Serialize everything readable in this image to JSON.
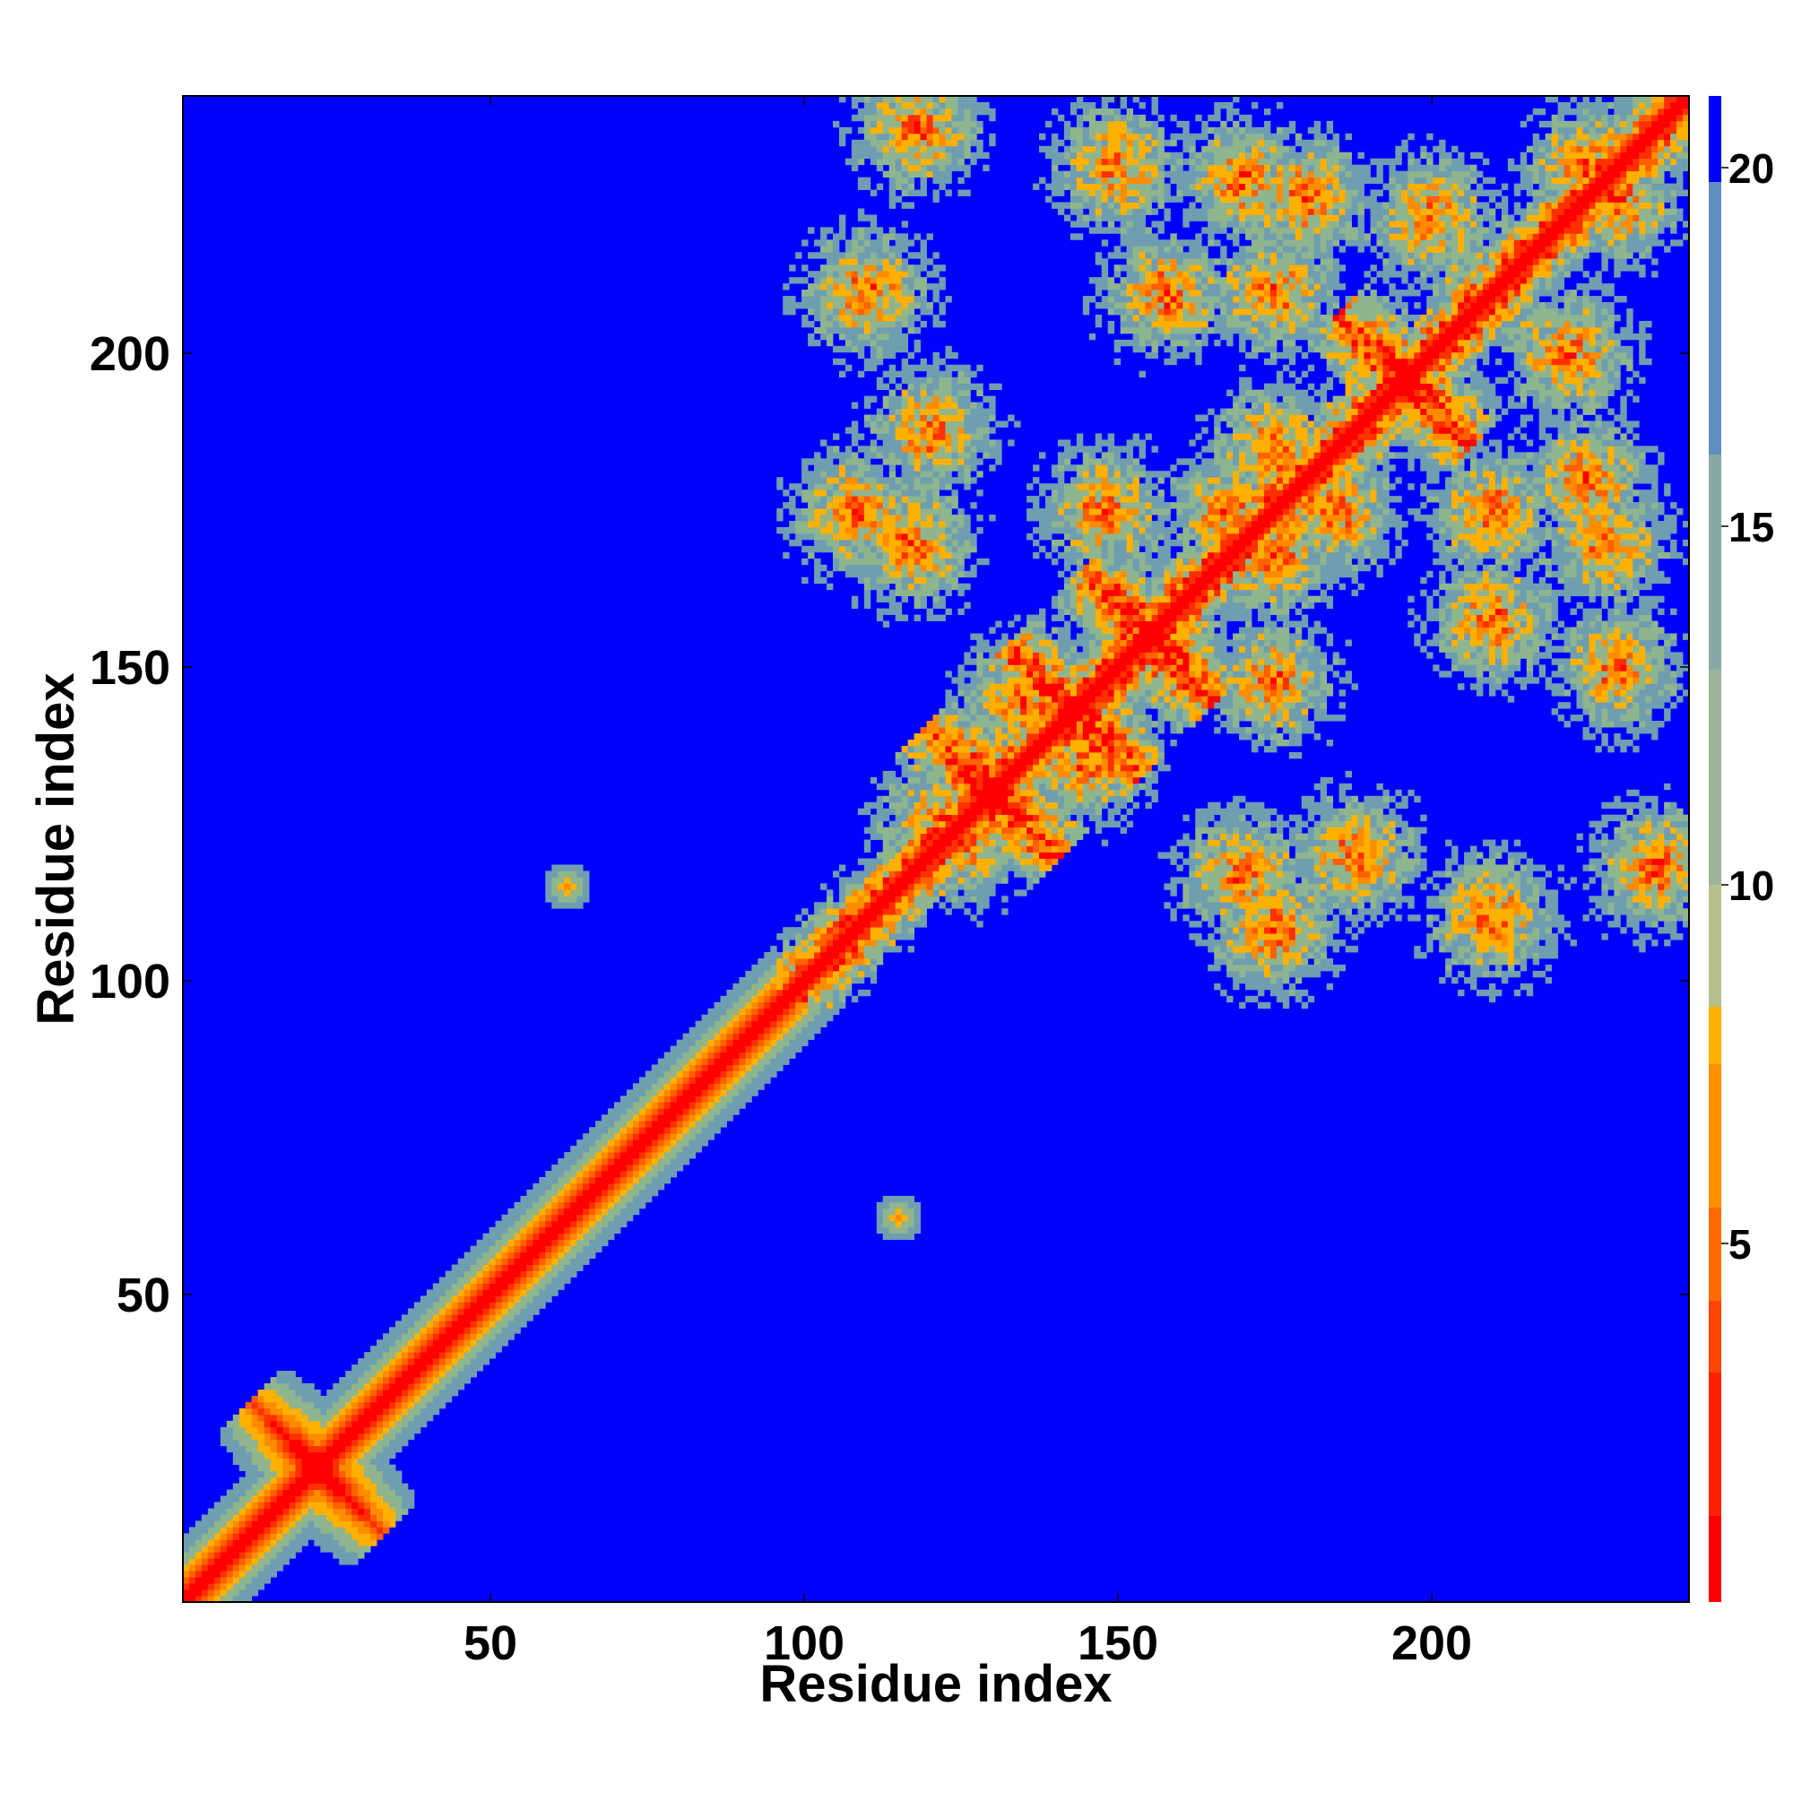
{
  "chart_data": {
    "type": "heatmap",
    "description_of_values": "residue-residue distance map",
    "xlabel": "Residue index",
    "ylabel": "Residue index",
    "xlim": [
      1,
      241
    ],
    "ylim": [
      1,
      241
    ],
    "x_ticks": [
      50,
      100,
      150,
      200
    ],
    "y_ticks": [
      50,
      100,
      150,
      200
    ],
    "colorbar": {
      "range": [
        0,
        21
      ],
      "ticks": [
        5,
        10,
        15,
        20
      ],
      "colors_low_to_high": [
        "#ff0000",
        "#ff3000",
        "#ff6000",
        "#ff8c00",
        "#ffb000",
        "#8fb58f",
        "#6e9eb0",
        "#0000ff"
      ]
    },
    "features": {
      "diagonal": "red band along x = y across all residues",
      "helical_crosses": [
        [
          22,
          22
        ],
        [
          130,
          130
        ],
        [
          143,
          143
        ],
        [
          155,
          155
        ],
        [
          196,
          196
        ]
      ],
      "contact_clusters": [
        [
          117,
          170
        ],
        [
          148,
          175
        ],
        [
          168,
          175
        ],
        [
          185,
          175
        ],
        [
          225,
          180
        ],
        [
          135,
          145
        ],
        [
          125,
          122
        ],
        [
          188,
          120
        ],
        [
          210,
          110
        ],
        [
          175,
          108
        ],
        [
          158,
          210
        ],
        [
          175,
          210
        ],
        [
          210,
          210
        ],
        [
          200,
          222
        ],
        [
          225,
          230
        ],
        [
          150,
          230
        ],
        [
          170,
          228
        ],
        [
          118,
          236
        ]
      ],
      "isolated_contacts": [
        [
          62,
          115
        ],
        [
          115,
          62
        ]
      ]
    },
    "grid": false,
    "legend": "colorbar right"
  }
}
